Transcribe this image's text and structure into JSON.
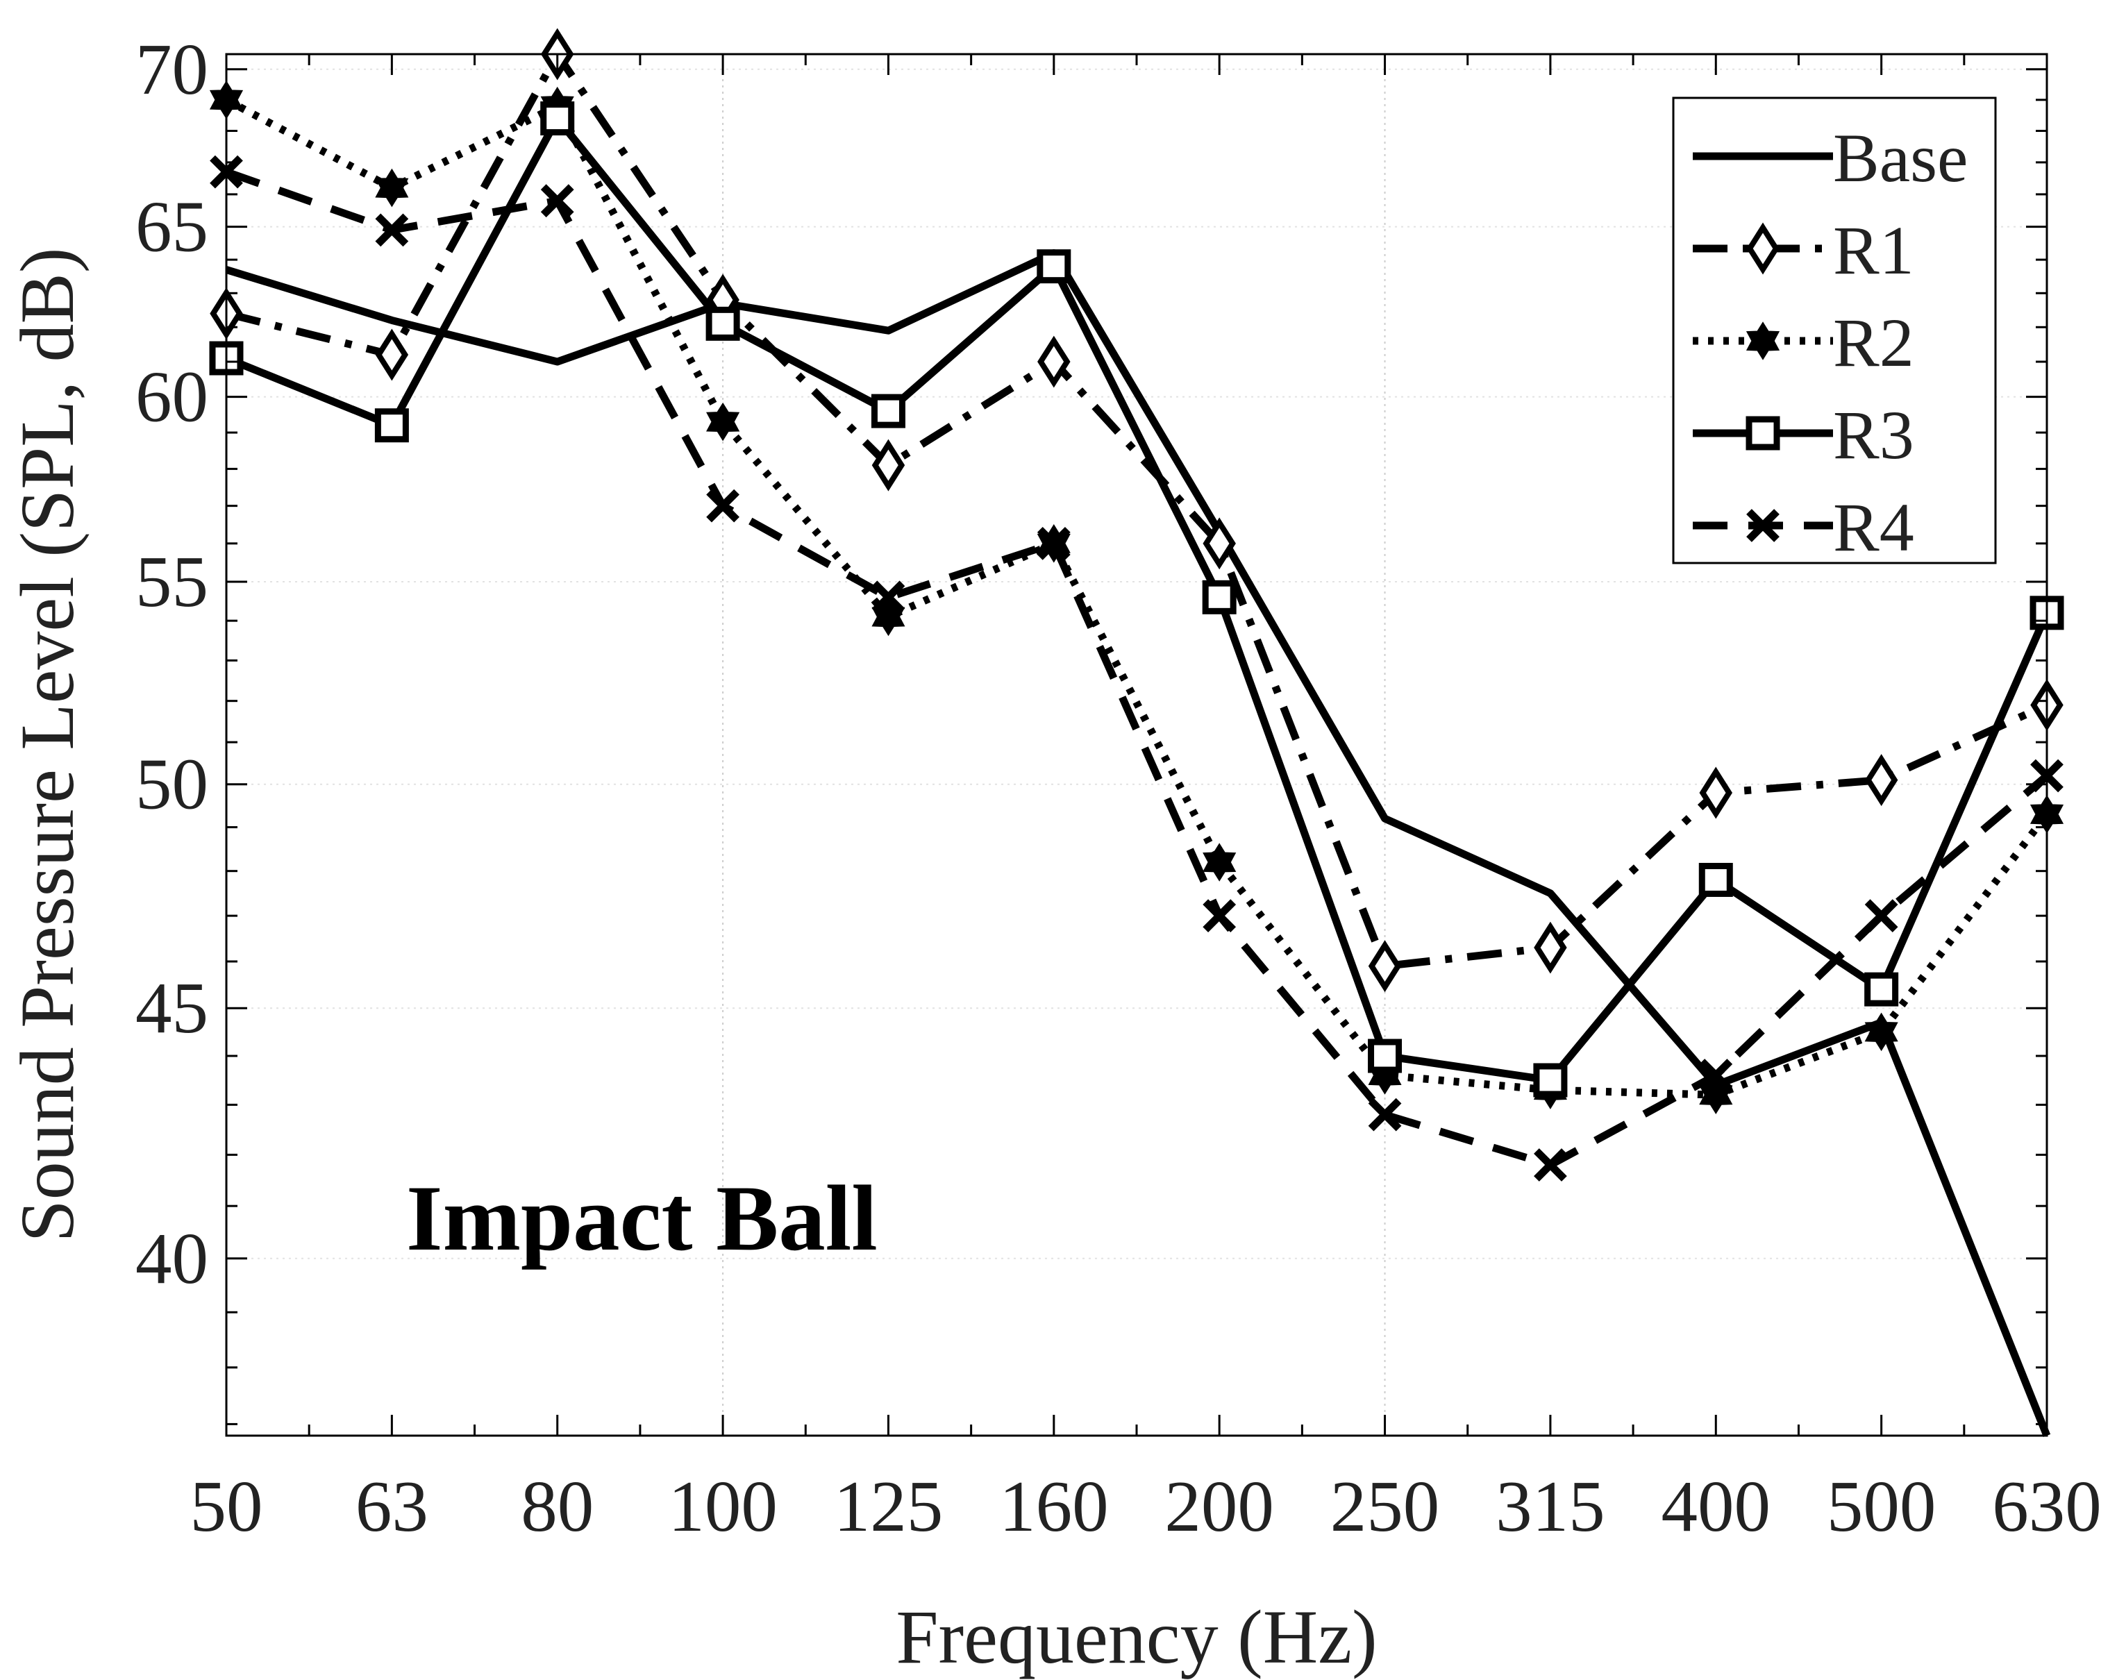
{
  "chart_data": {
    "type": "line",
    "title": "",
    "annotation": "Impact Ball",
    "xlabel": "Frequency (Hz)",
    "ylabel": "Sound Pressure Level (SPL, dB)",
    "categories": [
      "50",
      "63",
      "80",
      "100",
      "125",
      "160",
      "200",
      "250",
      "315",
      "400",
      "500",
      "630"
    ],
    "yscale": "log",
    "ylim": [
      36.8,
      70.5
    ],
    "yticks": [
      40,
      45,
      50,
      55,
      60,
      65,
      70
    ],
    "grid": "partial dotted",
    "legend_position": "top-right",
    "series": [
      {
        "name": "Base",
        "line": "solid",
        "marker": "none",
        "values": [
          63.7,
          62.2,
          61.0,
          62.7,
          61.9,
          64.2,
          56.3,
          49.2,
          47.5,
          43.4,
          44.7,
          36.8
        ]
      },
      {
        "name": "R1",
        "line": "dashdot",
        "marker": "diamond",
        "values": [
          62.4,
          61.2,
          70.5,
          62.8,
          58.1,
          61.0,
          56.0,
          45.9,
          46.3,
          49.8,
          50.1,
          51.9
        ]
      },
      {
        "name": "R2",
        "line": "dotted",
        "marker": "hexagram",
        "values": [
          69.0,
          66.2,
          68.8,
          59.3,
          54.1,
          56.0,
          48.2,
          43.6,
          43.3,
          43.2,
          44.5,
          49.3
        ]
      },
      {
        "name": "R3",
        "line": "solid",
        "marker": "square",
        "values": [
          61.1,
          59.2,
          68.4,
          62.1,
          59.6,
          63.8,
          54.6,
          44.0,
          43.5,
          47.8,
          45.4,
          54.2
        ]
      },
      {
        "name": "R4",
        "line": "dashed",
        "marker": "x",
        "values": [
          66.7,
          64.9,
          65.8,
          57.0,
          54.6,
          56.0,
          47.0,
          42.8,
          41.8,
          43.6,
          47.0,
          50.2
        ]
      }
    ],
    "colors": {
      "lines": "#000000",
      "text": "#222222"
    }
  }
}
